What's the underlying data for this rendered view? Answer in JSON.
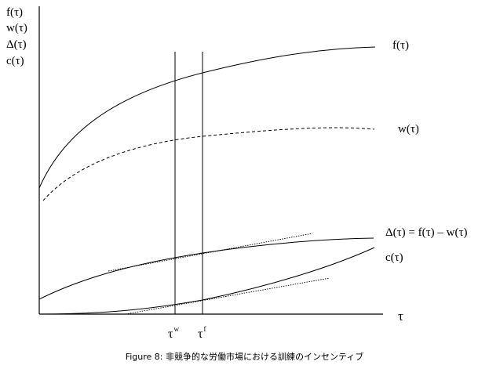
{
  "axis": {
    "y_labels": [
      "f(τ)",
      "w(τ)",
      "Δ(τ)",
      "c(τ)"
    ],
    "x_label": "τ"
  },
  "curves": {
    "f_label": "f(τ)",
    "w_label": "w(τ)",
    "delta_label": "Δ(τ) = f(τ) – w(τ)",
    "c_label": "c(τ)"
  },
  "markers": {
    "tau_w": {
      "base": "τ",
      "sup": "w"
    },
    "tau_f": {
      "base": "τ",
      "sup": "f"
    }
  },
  "caption": "Figure 8: 非競争的な労働市場における訓練のインセンティブ",
  "colors": {
    "ink": "#000000",
    "background": "#ffffff"
  }
}
